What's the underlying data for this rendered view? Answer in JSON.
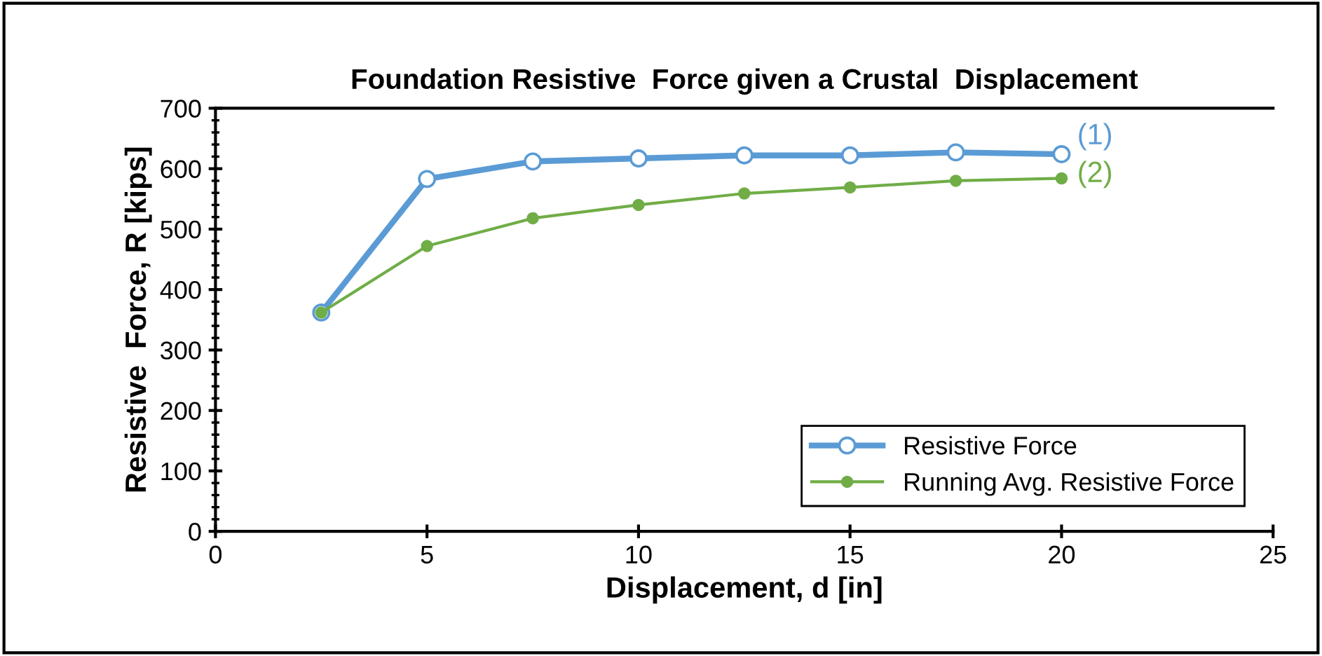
{
  "chart_data": {
    "type": "line",
    "title": "Foundation Resistive  Force given a Crustal  Displacement",
    "xlabel": "Displacement, d [in]",
    "ylabel": "Resistive  Force, R [kips]",
    "x": [
      2.5,
      5,
      7.5,
      10,
      12.5,
      15,
      17.5,
      20
    ],
    "series": [
      {
        "name": "Resistive Force",
        "color": "#5b9bd5",
        "marker": "circle",
        "values": [
          362,
          583,
          612,
          617,
          622,
          622,
          627,
          624
        ]
      },
      {
        "name": "Running Avg. Resistive Force",
        "color": "#70ad47",
        "marker": "circle",
        "values": [
          362,
          472,
          518,
          540,
          559,
          569,
          580,
          584
        ]
      }
    ],
    "annotations": [
      {
        "text": "(1)",
        "x": 20,
        "y": 624
      },
      {
        "text": "(2)",
        "x": 20,
        "y": 584
      }
    ],
    "xlim": [
      0,
      25
    ],
    "xticks": [
      0,
      5,
      10,
      15,
      20,
      25
    ],
    "ylim": [
      0,
      700
    ],
    "yticks": [
      0,
      100,
      200,
      300,
      400,
      500,
      600,
      700
    ],
    "grid": false,
    "legend": "bottom right"
  }
}
